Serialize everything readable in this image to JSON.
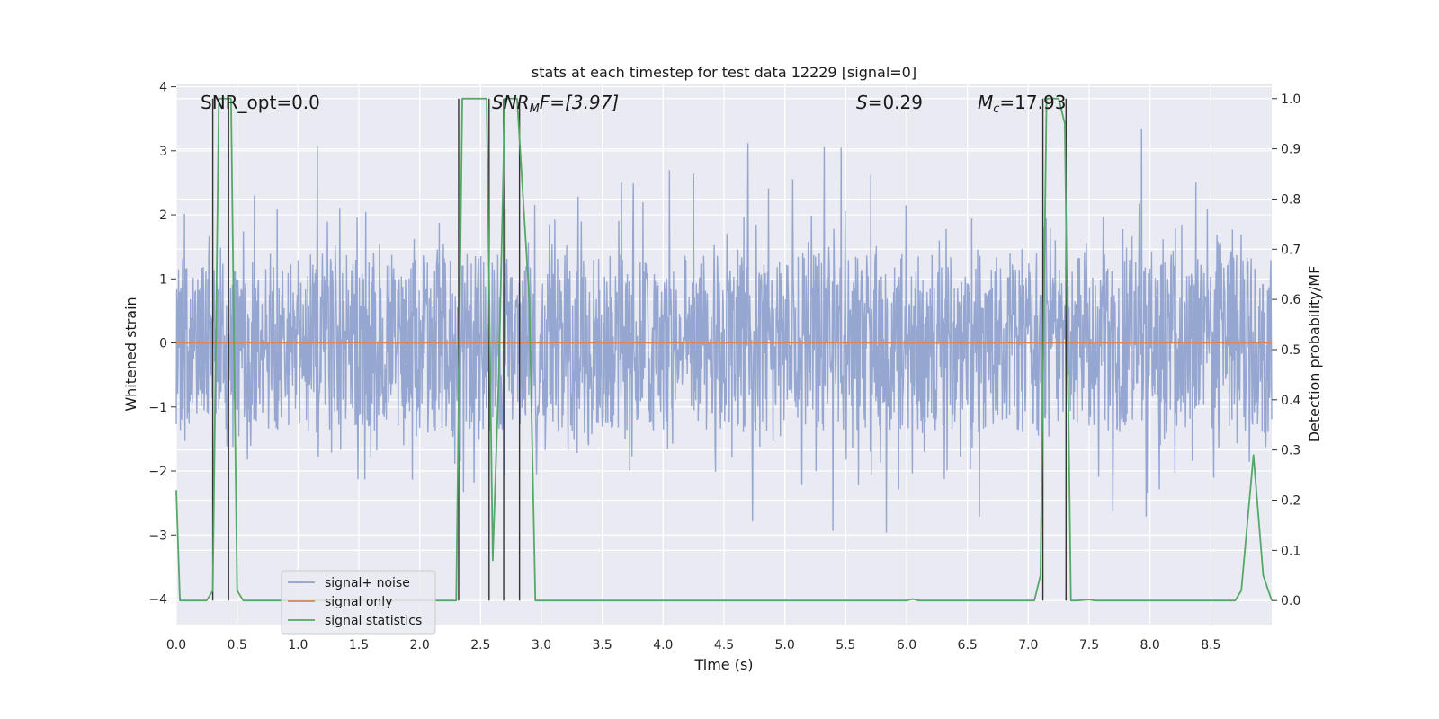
{
  "chart_data": {
    "type": "line",
    "title": "stats at each timestep for test data 12229 [signal=0]",
    "xlabel": "Time (s)",
    "ylabel": "Whitened strain",
    "y2label": "Detection probability/MF",
    "xlim": [
      0.0,
      9.0
    ],
    "ylim": [
      -4.4,
      4.05
    ],
    "y2lim": [
      -0.048,
      1.03
    ],
    "xticks": [
      0.0,
      0.5,
      1.0,
      1.5,
      2.0,
      2.5,
      3.0,
      3.5,
      4.0,
      4.5,
      5.0,
      5.5,
      6.0,
      6.5,
      7.0,
      7.5,
      8.0,
      8.5
    ],
    "xtick_labels": [
      "0.0",
      "0.5",
      "1.0",
      "1.5",
      "2.0",
      "2.5",
      "3.0",
      "3.5",
      "4.0",
      "4.5",
      "5.0",
      "5.5",
      "6.0",
      "6.5",
      "7.0",
      "7.5",
      "8.0",
      "8.5"
    ],
    "yticks": [
      4,
      3,
      2,
      1,
      0,
      -1,
      -2,
      -3,
      -4
    ],
    "ytick_labels": [
      "4",
      "3",
      "2",
      "1",
      "0",
      "−1",
      "−2",
      "−3",
      "−4"
    ],
    "y2ticks": [
      1.0,
      0.9,
      0.8,
      0.7,
      0.6,
      0.5,
      0.4,
      0.3,
      0.2,
      0.1,
      0.0
    ],
    "y2tick_labels": [
      "1.0",
      "0.9",
      "0.8",
      "0.7",
      "0.6",
      "0.5",
      "0.4",
      "0.3",
      "0.2",
      "0.1",
      "0.0"
    ],
    "grid": true,
    "legend_position": "lower-left",
    "series": [
      {
        "name": "signal+ noise",
        "axis": "left",
        "color": "#8c9fcc",
        "description": "dense whitened strain noise, roughly within ±1.4 with spikes to about ±3.7",
        "envelope": {
          "base_amplitude": 1.4,
          "max_spike": 3.7,
          "min_spike": -3.6
        }
      },
      {
        "name": "signal only",
        "axis": "left",
        "color": "#dd8452",
        "x": [
          0.0,
          9.0
        ],
        "y": [
          0.0,
          0.0
        ]
      },
      {
        "name": "signal statistics",
        "axis": "right",
        "color": "#55a868",
        "x": [
          0.0,
          0.03,
          0.15,
          0.25,
          0.3,
          0.35,
          0.4,
          0.45,
          0.5,
          0.55,
          2.25,
          2.3,
          2.35,
          2.55,
          2.6,
          2.65,
          2.7,
          2.75,
          2.8,
          2.85,
          2.9,
          2.95,
          6.0,
          6.05,
          6.1,
          7.05,
          7.1,
          7.15,
          7.2,
          7.25,
          7.3,
          7.35,
          7.4,
          7.5,
          7.55,
          8.7,
          8.75,
          8.85,
          8.93,
          9.0
        ],
        "y": [
          0.22,
          0.0,
          0.0,
          0.0,
          0.02,
          1.0,
          1.0,
          1.0,
          0.02,
          0.0,
          0.0,
          0.0,
          1.0,
          1.0,
          0.08,
          0.45,
          1.0,
          1.0,
          1.0,
          0.8,
          0.6,
          0.0,
          0.0,
          0.003,
          0.0,
          0.0,
          0.05,
          1.0,
          1.0,
          1.0,
          0.95,
          0.0,
          0.0,
          0.002,
          0.0,
          0.0,
          0.02,
          0.29,
          0.05,
          0.0
        ]
      }
    ],
    "vlines": [
      0.3,
      0.43,
      2.32,
      2.57,
      2.69,
      2.82,
      7.12,
      7.31
    ],
    "annotations": {
      "snr_opt": "SNR_opt=0.0",
      "snr_mf_prefix": "SNR",
      "snr_mf_sub": "M",
      "snr_mf_rest": "F=[3.97]",
      "s_prefix": "S",
      "s_rest": "=0.29",
      "mc_prefix": "M",
      "mc_sub": "c",
      "mc_rest": "=17.93"
    },
    "legend": [
      "signal+ noise",
      "signal only",
      "signal statistics"
    ],
    "colors": {
      "plot_bg": "#eaeaf2",
      "grid": "#ffffff",
      "vline": "#333333"
    }
  }
}
